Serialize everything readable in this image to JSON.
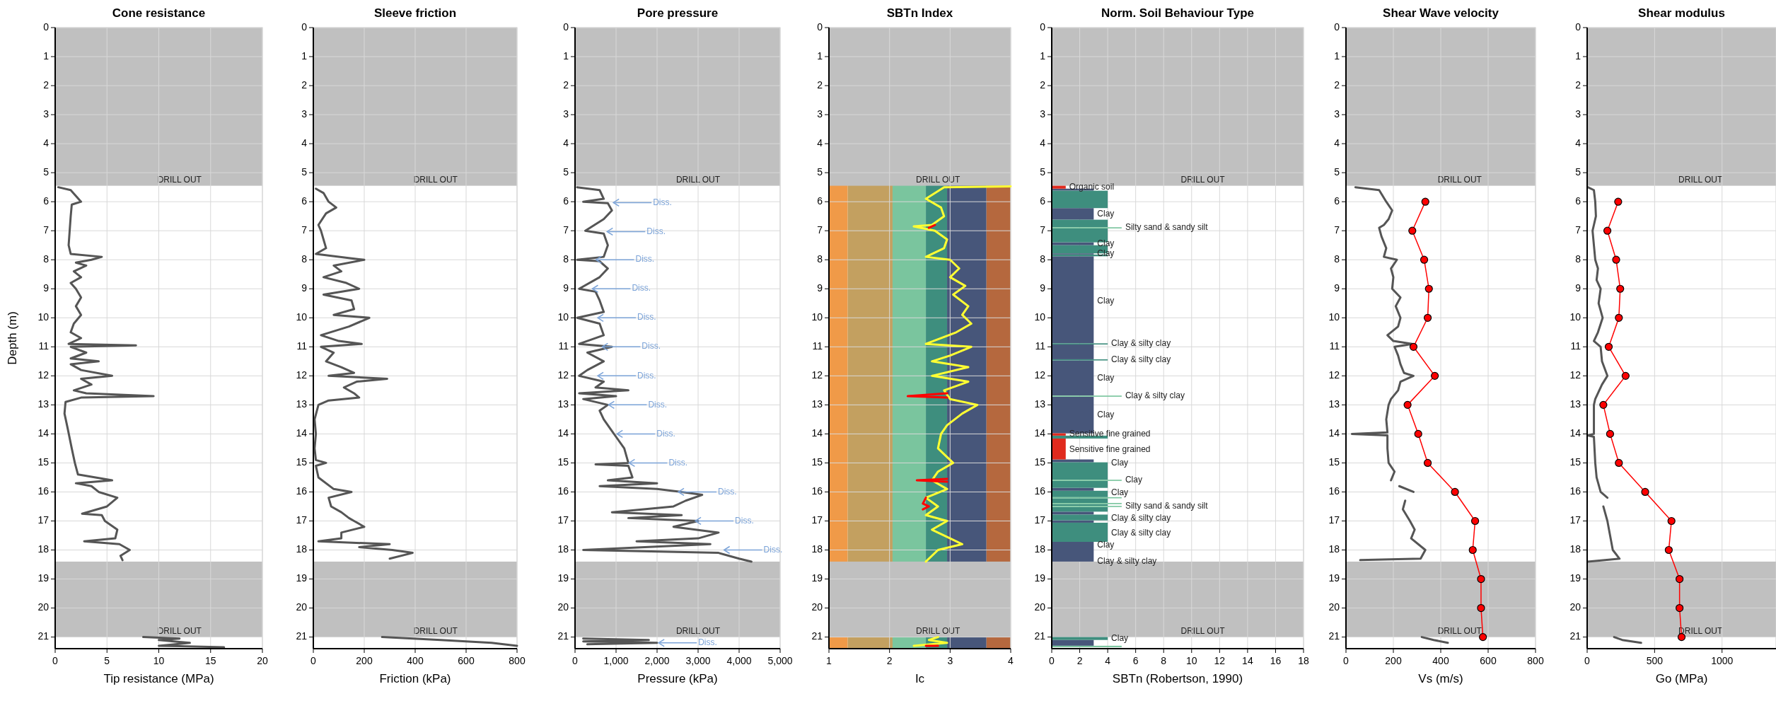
{
  "chart_data": [
    {
      "type": "line",
      "title": "Cone resistance",
      "xlabel": "Tip resistance (MPa)",
      "ylabel": "Depth (m)",
      "xlim": [
        0,
        20
      ],
      "xticks": [
        0,
        5,
        10,
        15,
        20
      ],
      "ylim": [
        21.4,
        0
      ],
      "yticks": [
        0,
        1,
        2,
        3,
        4,
        5,
        6,
        7,
        8,
        9,
        10,
        11,
        12,
        13,
        14,
        15,
        16,
        17,
        18,
        19,
        20,
        21
      ],
      "grid": true,
      "bands": [
        {
          "axis": "y",
          "from": 0,
          "to": 5.45,
          "label": "DRILL OUT",
          "color": "#c0c0c0"
        },
        {
          "axis": "y",
          "from": 18.4,
          "to": 21.0,
          "label": "DRILL OUT",
          "color": "#c0c0c0"
        }
      ],
      "series": [
        {
          "color": "#555555",
          "x": [
            0.3,
            1.5,
            2.0,
            2.5,
            1.6,
            1.5,
            1.4,
            1.3,
            1.5,
            4.5,
            3.5,
            2.0,
            3.0,
            1.8,
            2.5,
            1.5,
            2.0,
            2.5,
            2.0,
            2.5,
            1.8,
            1.5,
            2.5,
            1.3,
            7.8,
            1.5,
            3.0,
            1.5,
            4.2,
            1.5,
            2.5,
            5.5,
            2.5,
            3.5,
            1.8,
            3.0,
            9.5,
            2.5,
            1.0,
            0.9,
            1.2,
            1.6,
            1.9,
            2.2,
            5.5,
            2.0,
            3.5,
            4.2,
            6.0,
            5.0,
            2.6,
            4.5,
            4.8,
            6.0,
            5.8,
            2.8,
            6.2,
            7.2,
            6.3,
            6.5,
            null,
            8.5,
            12,
            10,
            13,
            10,
            16.3
          ],
          "values": [
            5.5,
            5.6,
            5.8,
            6.0,
            6.1,
            6.5,
            7.0,
            7.5,
            7.8,
            7.9,
            8.0,
            8.1,
            8.2,
            8.4,
            8.6,
            8.8,
            9.0,
            9.3,
            9.6,
            9.9,
            10.2,
            10.5,
            10.7,
            10.9,
            10.95,
            11.0,
            11.2,
            11.4,
            11.5,
            11.6,
            11.8,
            12.0,
            12.1,
            12.3,
            12.5,
            12.6,
            12.7,
            12.75,
            12.9,
            13.3,
            13.8,
            14.5,
            15.0,
            15.4,
            15.6,
            15.7,
            15.8,
            16.0,
            16.2,
            16.5,
            16.75,
            16.8,
            17.0,
            17.3,
            17.6,
            17.7,
            17.8,
            18.0,
            18.2,
            18.35,
            null,
            21.0,
            21.05,
            21.1,
            21.2,
            21.3,
            21.35
          ]
        }
      ]
    },
    {
      "type": "line",
      "title": "Sleeve friction",
      "xlabel": "Friction (kPa)",
      "xlim": [
        0,
        800
      ],
      "xticks": [
        0,
        200,
        400,
        600,
        800
      ],
      "ylim": [
        21.4,
        0
      ],
      "yticks": [
        0,
        1,
        2,
        3,
        4,
        5,
        6,
        7,
        8,
        9,
        10,
        11,
        12,
        13,
        14,
        15,
        16,
        17,
        18,
        19,
        20,
        21
      ],
      "grid": true,
      "bands": [
        {
          "axis": "y",
          "from": 0,
          "to": 5.45,
          "label": "DRILL OUT",
          "color": "#c0c0c0"
        },
        {
          "axis": "y",
          "from": 18.4,
          "to": 21.0,
          "label": "DRILL OUT",
          "color": "#c0c0c0"
        }
      ],
      "series": [
        {
          "color": "#555555",
          "x": [
            10,
            40,
            60,
            90,
            50,
            20,
            30,
            40,
            50,
            10,
            150,
            200,
            80,
            110,
            40,
            130,
            180,
            40,
            150,
            160,
            80,
            220,
            140,
            30,
            100,
            190,
            30,
            80,
            50,
            110,
            160,
            60,
            290,
            170,
            120,
            160,
            180,
            60,
            20,
            5,
            10,
            5,
            10,
            50,
            10,
            20,
            80,
            150,
            60,
            70,
            110,
            140,
            160,
            200,
            110,
            110,
            20,
            300,
            180,
            310,
            390,
            300,
            null,
            270,
            500,
            700,
            800
          ],
          "values": [
            5.55,
            5.7,
            6.0,
            6.2,
            6.4,
            6.8,
            7.0,
            7.3,
            7.6,
            7.8,
            7.95,
            8.0,
            8.2,
            8.4,
            8.6,
            8.8,
            9.0,
            9.2,
            9.4,
            9.7,
            9.9,
            10.0,
            10.3,
            10.6,
            10.8,
            10.9,
            11.0,
            11.2,
            11.5,
            11.7,
            11.9,
            12.0,
            12.1,
            12.2,
            12.4,
            12.6,
            12.75,
            12.85,
            13.0,
            13.5,
            14.0,
            14.5,
            14.9,
            15.0,
            15.1,
            15.5,
            15.9,
            16.0,
            16.2,
            16.5,
            16.7,
            16.9,
            17.0,
            17.2,
            17.4,
            17.6,
            17.7,
            17.8,
            17.9,
            18.0,
            18.1,
            18.3,
            null,
            21.0,
            21.1,
            21.2,
            21.3
          ]
        }
      ]
    },
    {
      "type": "line",
      "title": "Pore pressure",
      "xlabel": "Pressure (kPa)",
      "xlim": [
        0,
        5000
      ],
      "xticks": [
        0,
        {
          "value": 1000,
          "label": "1,000"
        },
        {
          "value": 2000,
          "label": "2,000"
        },
        {
          "value": 3000,
          "label": "3,000"
        },
        {
          "value": 4000,
          "label": "4,000"
        },
        {
          "value": 5000,
          "label": "5,000"
        }
      ],
      "ylim": [
        21.4,
        0
      ],
      "yticks": [
        0,
        1,
        2,
        3,
        4,
        5,
        6,
        7,
        8,
        9,
        10,
        11,
        12,
        13,
        14,
        15,
        16,
        17,
        18,
        19,
        20,
        21
      ],
      "grid": true,
      "bands": [
        {
          "axis": "y",
          "from": 0,
          "to": 5.45,
          "label": "DRILL OUT",
          "color": "#c0c0c0"
        },
        {
          "axis": "y",
          "from": 18.4,
          "to": 21.0,
          "label": "DRILL OUT",
          "color": "#c0c0c0"
        }
      ],
      "series": [
        {
          "color": "#555555",
          "x": [
            50,
            600,
            700,
            200,
            800,
            900,
            700,
            250,
            700,
            800,
            700,
            50,
            600,
            800,
            600,
            100,
            500,
            600,
            700,
            50,
            600,
            700,
            100,
            900,
            300,
            700,
            300,
            100,
            700,
            500,
            1300,
            100,
            1000,
            200,
            800,
            600,
            700,
            900,
            1000,
            1200,
            1300,
            500,
            1300,
            1400,
            800,
            2000,
            600,
            2000,
            2600,
            3100,
            2700,
            2400,
            900,
            2600,
            1300,
            3000,
            2400,
            3500,
            3000,
            1500,
            3300,
            200,
            3500,
            4000,
            4300,
            null,
            200,
            1800,
            200,
            2000,
            300
          ],
          "values": [
            5.5,
            5.6,
            5.9,
            6.0,
            6.05,
            6.3,
            6.6,
            7.0,
            7.1,
            7.5,
            7.9,
            8.0,
            8.05,
            8.3,
            8.6,
            9.0,
            9.1,
            9.4,
            9.8,
            10.0,
            10.2,
            10.6,
            10.9,
            11.0,
            11.2,
            11.5,
            11.8,
            12.0,
            12.2,
            12.4,
            12.5,
            12.6,
            12.7,
            12.8,
            13.0,
            13.2,
            13.5,
            13.9,
            14.1,
            14.5,
            15.0,
            15.05,
            15.1,
            15.5,
            15.6,
            15.7,
            15.8,
            15.9,
            16.0,
            16.1,
            16.3,
            16.5,
            16.7,
            16.8,
            16.9,
            17.0,
            17.2,
            17.4,
            17.6,
            17.7,
            17.8,
            18.0,
            18.1,
            18.3,
            18.4,
            null,
            21.05,
            21.1,
            21.15,
            21.2,
            21.25
          ]
        }
      ],
      "annotations": [
        {
          "text": "Diss.",
          "x": 917,
          "y": 6.03
        },
        {
          "text": "Diss.",
          "x": 764,
          "y": 7.03
        },
        {
          "text": "Diss.",
          "x": 491,
          "y": 8.0
        },
        {
          "text": "Diss.",
          "x": 404,
          "y": 9.0
        },
        {
          "text": "Diss.",
          "x": 535,
          "y": 10.0
        },
        {
          "text": "Diss.",
          "x": 644,
          "y": 11.0
        },
        {
          "text": "Diss.",
          "x": 535,
          "y": 12.0
        },
        {
          "text": "Diss.",
          "x": 800,
          "y": 13.0
        },
        {
          "text": "Diss.",
          "x": 1004,
          "y": 14.0
        },
        {
          "text": "Diss.",
          "x": 1300,
          "y": 15.0
        },
        {
          "text": "Diss.",
          "x": 2500,
          "y": 16.0
        },
        {
          "text": "Diss.",
          "x": 2915,
          "y": 17.0
        },
        {
          "text": "Diss.",
          "x": 3614,
          "y": 18.0
        },
        {
          "text": "Diss.",
          "x": 2020,
          "y": 21.2
        }
      ]
    },
    {
      "type": "line",
      "title": "SBTn Index",
      "xlabel": "Ic",
      "xlim": [
        1,
        4
      ],
      "xticks": [
        1,
        2,
        3,
        4
      ],
      "ylim": [
        21.4,
        0
      ],
      "yticks": [
        0,
        1,
        2,
        3,
        4,
        5,
        6,
        7,
        8,
        9,
        10,
        11,
        12,
        13,
        14,
        15,
        16,
        17,
        18,
        19,
        20,
        21
      ],
      "grid": true,
      "bands": [
        {
          "axis": "x",
          "from": 1,
          "to": 1.31,
          "color": "#f09a48"
        },
        {
          "axis": "x",
          "from": 1.31,
          "to": 2.05,
          "color": "#c3a060"
        },
        {
          "axis": "x",
          "from": 2.05,
          "to": 2.6,
          "color": "#7ac59e"
        },
        {
          "axis": "x",
          "from": 2.6,
          "to": 2.95,
          "color": "#3e8e7e"
        },
        {
          "axis": "x",
          "from": 2.95,
          "to": 3.6,
          "color": "#47567a"
        },
        {
          "axis": "x",
          "from": 3.6,
          "to": 4,
          "color": "#b5683e"
        },
        {
          "axis": "y",
          "from": 0,
          "to": 5.45,
          "label": "DRILL OUT",
          "color": "#c0c0c0"
        },
        {
          "axis": "y",
          "from": 18.4,
          "to": 21.0,
          "label": "DRILL OUT",
          "color": "#c0c0c0"
        }
      ],
      "series": [
        {
          "color": "#ffff33",
          "x": [
            4.0,
            2.9,
            2.6,
            2.85,
            2.9,
            2.7,
            2.4,
            2.75,
            2.95,
            2.9,
            2.6,
            3.0,
            3.15,
            3.0,
            3.25,
            3.05,
            3.3,
            3.2,
            3.35,
            3.1,
            2.6,
            3.35,
            3.0,
            2.7,
            3.3,
            2.7,
            3.3,
            2.9,
            3.0,
            3.45,
            3.2,
            2.95,
            2.85,
            2.8,
            3.05,
            2.8,
            2.7,
            2.95,
            2.6,
            2.8,
            2.6,
            2.95,
            2.7,
            3.2,
            2.8,
            2.6,
            null,
            2.8,
            2.65,
            2.95,
            2.4
          ],
          "values": [
            5.47,
            5.5,
            5.9,
            6.2,
            6.5,
            6.8,
            6.85,
            7.0,
            7.3,
            7.6,
            7.9,
            8.0,
            8.3,
            8.6,
            8.9,
            9.2,
            9.6,
            9.9,
            10.2,
            10.5,
            10.9,
            11.0,
            11.3,
            11.5,
            11.7,
            12.0,
            12.2,
            12.5,
            12.8,
            13.0,
            13.3,
            13.7,
            14.0,
            14.5,
            15.0,
            15.3,
            15.6,
            15.9,
            16.2,
            16.5,
            16.8,
            17.0,
            17.3,
            17.8,
            18.0,
            18.4,
            null,
            21.0,
            21.1,
            21.2,
            21.3
          ]
        },
        {
          "color": "#ff0000",
          "x": [
            2.75,
            2.65,
            null,
            2.95,
            2.3,
            2.95,
            null,
            2.95,
            2.45,
            2.95,
            null,
            2.6,
            2.55,
            2.65,
            2.55,
            null,
            2.6,
            2.8
          ],
          "values": [
            6.8,
            6.9,
            null,
            12.6,
            12.7,
            12.75,
            null,
            15.55,
            15.6,
            15.65,
            null,
            16.2,
            16.4,
            16.5,
            16.6,
            null,
            21.3,
            21.3
          ]
        }
      ]
    },
    {
      "type": "bar",
      "orientation": "horizontal",
      "title": "Norm. Soil Behaviour Type",
      "xlabel": "SBTn (Robertson, 1990)",
      "xlim": [
        0,
        18
      ],
      "xticks": [
        0,
        2,
        4,
        6,
        8,
        10,
        12,
        14,
        16,
        18
      ],
      "ylim": [
        21.4,
        0
      ],
      "yticks": [
        0,
        1,
        2,
        3,
        4,
        5,
        6,
        7,
        8,
        9,
        10,
        11,
        12,
        13,
        14,
        15,
        16,
        17,
        18,
        19,
        20,
        21
      ],
      "grid": true,
      "bands": [
        {
          "axis": "y",
          "from": 0,
          "to": 5.45,
          "label": "DRILL OUT",
          "color": "#c0c0c0"
        },
        {
          "axis": "y",
          "from": 18.4,
          "to": 21.0,
          "label": "DRILL OUT",
          "color": "#c0c0c0"
        }
      ],
      "series": [
        {
          "color": "#47567a",
          "x": [
            5.585,
            6.42,
            7.45,
            7.8,
            9.38,
            11.175,
            12.075,
            13.35,
            14.93,
            15.91,
            16.73,
            17.02,
            18.06,
            21.2
          ],
          "values": [
            3,
            3,
            3,
            3,
            3,
            3,
            3,
            3,
            3,
            3,
            3,
            3,
            3,
            3
          ]
        },
        {
          "color": "#3e8e7e",
          "x": [
            5.92,
            6.75,
            7.16,
            7.64,
            7.85,
            10.9,
            11.45,
            14.11,
            15.28,
            15.74,
            16.07,
            16.3,
            16.45,
            16.6,
            16.88,
            17.39,
            21.05
          ],
          "values": [
            4,
            4,
            4,
            4,
            4,
            4,
            4,
            4,
            4,
            4,
            4,
            4,
            4,
            4,
            4,
            4,
            4
          ]
        },
        {
          "color": "#7ac59e",
          "x": [
            6.9,
            12.7,
            15.6,
            16.2,
            16.4,
            16.5,
            21.325
          ],
          "values": [
            5,
            5,
            5,
            5,
            5,
            5,
            5
          ]
        },
        {
          "color": "#e02a1e",
          "x": [
            5.5,
            14.02,
            14.52
          ],
          "values": [
            1,
            1,
            1
          ]
        }
      ],
      "annotations": [
        {
          "text": "Organic soil",
          "x": 1,
          "y": 5.5
        },
        {
          "text": "Clay",
          "x": 3,
          "y": 6.44
        },
        {
          "text": "Silty sand & sandy silt",
          "x": 5,
          "y": 6.9
        },
        {
          "text": "Clay",
          "x": 3,
          "y": 7.45
        },
        {
          "text": "Clay",
          "x": 3,
          "y": 7.8
        },
        {
          "text": "Clay",
          "x": 3,
          "y": 9.44
        },
        {
          "text": "Clay & silty clay",
          "x": 4,
          "y": 10.9
        },
        {
          "text": "Clay & silty clay",
          "x": 4,
          "y": 11.45
        },
        {
          "text": "Clay",
          "x": 3,
          "y": 12.08
        },
        {
          "text": "Clay & silty clay",
          "x": 5,
          "y": 12.7
        },
        {
          "text": "Clay",
          "x": 3,
          "y": 13.36
        },
        {
          "text": "Sensitive fine grained",
          "x": 1,
          "y": 14.02
        },
        {
          "text": "Sensitive fine grained",
          "x": 1,
          "y": 14.55
        },
        {
          "text": "Clay",
          "x": 4,
          "y": 15.02
        },
        {
          "text": "Clay",
          "x": 5,
          "y": 15.6
        },
        {
          "text": "Clay",
          "x": 4,
          "y": 16.03
        },
        {
          "text": "Silty sand & sandy silt",
          "x": 5,
          "y": 16.5
        },
        {
          "text": "Clay & silty clay",
          "x": 4,
          "y": 16.91
        },
        {
          "text": "Clay & silty clay",
          "x": 4,
          "y": 17.43
        },
        {
          "text": "Clay",
          "x": 3,
          "y": 17.84
        },
        {
          "text": "Clay & silty clay",
          "x": 3,
          "y": 18.39
        },
        {
          "text": "Clay",
          "x": 4,
          "y": 21.05
        }
      ]
    },
    {
      "type": "line",
      "title": "Shear Wave velocity",
      "xlabel": "Vs (m/s)",
      "xlim": [
        0,
        800
      ],
      "xticks": [
        0,
        200,
        400,
        600,
        800
      ],
      "ylim": [
        21.4,
        0
      ],
      "yticks": [
        0,
        1,
        2,
        3,
        4,
        5,
        6,
        7,
        8,
        9,
        10,
        11,
        12,
        13,
        14,
        15,
        16,
        17,
        18,
        19,
        20,
        21
      ],
      "grid": true,
      "bands": [
        {
          "axis": "y",
          "from": 0,
          "to": 5.45,
          "label": "DRILL OUT",
          "color": "#c0c0c0"
        },
        {
          "axis": "y",
          "from": 18.4,
          "to": 21.0,
          "label": "DRILL OUT",
          "color": "#c0c0c0"
        }
      ],
      "series": [
        {
          "color": "#555555",
          "x": [
            40,
            140,
            170,
            195,
            180,
            160,
            140,
            150,
            170,
            160,
            215,
            190,
            200,
            195,
            230,
            210,
            230,
            220,
            175,
            200,
            280,
            205,
            220,
            230,
            245,
            285,
            230,
            220,
            190,
            180,
            170,
            175,
            25,
            175,
            175,
            180,
            205,
            190,
            null,
            225,
            285,
            null,
            250,
            240,
            270,
            290,
            275,
            335,
            315,
            60,
            null,
            320,
            370,
            430
          ],
          "values": [
            5.5,
            5.6,
            6.0,
            6.3,
            6.6,
            6.8,
            6.9,
            7.2,
            7.6,
            7.9,
            8.0,
            8.3,
            8.6,
            9.0,
            9.3,
            9.6,
            10.0,
            10.3,
            10.6,
            10.8,
            10.9,
            11.0,
            11.3,
            11.6,
            11.9,
            12.0,
            12.2,
            12.5,
            12.8,
            13.0,
            13.5,
            13.95,
            14.0,
            14.05,
            14.5,
            15.0,
            15.3,
            15.6,
            null,
            15.8,
            16.0,
            null,
            16.3,
            16.6,
            17.0,
            17.3,
            17.6,
            18.0,
            18.3,
            18.35,
            null,
            21.0,
            21.1,
            21.2
          ]
        },
        {
          "color": "#ff0000",
          "marker": "circle",
          "x": [
            335,
            280,
            330,
            350,
            345,
            285,
            375,
            260,
            305,
            345,
            460,
            545,
            535,
            570,
            570,
            578
          ],
          "values": [
            6,
            7,
            8,
            9,
            10,
            11,
            12,
            13,
            14,
            15,
            16,
            17,
            18,
            19,
            20,
            21
          ]
        }
      ]
    },
    {
      "type": "line",
      "title": "Shear modulus",
      "xlabel": "Go (MPa)",
      "xlim": [
        0,
        1400
      ],
      "xticks": [
        0,
        500,
        1000
      ],
      "ylim": [
        21.4,
        0
      ],
      "yticks": [
        0,
        1,
        2,
        3,
        4,
        5,
        6,
        7,
        8,
        9,
        10,
        11,
        12,
        13,
        14,
        15,
        16,
        17,
        18,
        19,
        20,
        21
      ],
      "grid": true,
      "bands": [
        {
          "axis": "y",
          "from": 0,
          "to": 5.45,
          "label": "DRILL OUT",
          "color": "#c0c0c0"
        },
        {
          "axis": "y",
          "from": 18.4,
          "to": 21.0,
          "label": "DRILL OUT",
          "color": "#c0c0c0"
        }
      ],
      "series": [
        {
          "color": "#555555",
          "x": [
            5,
            50,
            60,
            65,
            50,
            40,
            50,
            60,
            80,
            70,
            100,
            85,
            115,
            80,
            50,
            100,
            110,
            150,
            110,
            60,
            50,
            50,
            5,
            50,
            60,
            70,
            100,
            150,
            null,
            120,
            150,
            170,
            190,
            240,
            5,
            null,
            200,
            260,
            400
          ],
          "values": [
            5.5,
            5.6,
            6.0,
            6.5,
            6.8,
            7.0,
            7.5,
            8.0,
            8.3,
            8.7,
            9.0,
            9.5,
            10.0,
            10.5,
            10.8,
            11.0,
            11.5,
            12.0,
            12.3,
            12.8,
            13.0,
            14.0,
            14.05,
            14.1,
            15.0,
            15.5,
            16.0,
            16.2,
            null,
            16.5,
            17.0,
            17.5,
            18.0,
            18.3,
            18.4,
            null,
            21.0,
            21.1,
            21.2
          ]
        },
        {
          "color": "#ff0000",
          "marker": "circle",
          "x": [
            230,
            150,
            215,
            245,
            235,
            160,
            285,
            120,
            170,
            235,
            430,
            625,
            605,
            685,
            685,
            700
          ],
          "values": [
            6,
            7,
            8,
            9,
            10,
            11,
            12,
            13,
            14,
            15,
            16,
            17,
            18,
            19,
            20,
            21
          ]
        }
      ]
    }
  ]
}
